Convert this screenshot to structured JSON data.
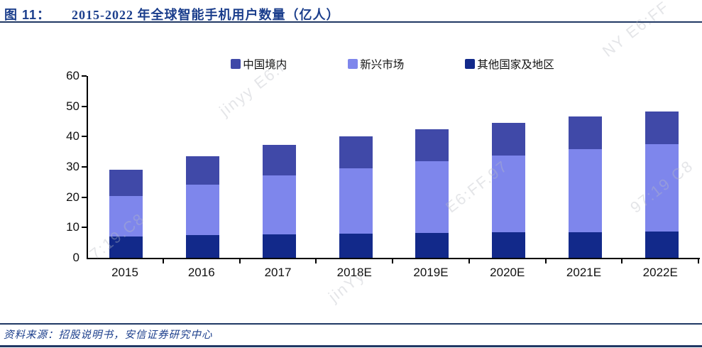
{
  "header": {
    "figure_label": "图 11：",
    "title": "2015-2022 年全球智能手机用户数量（亿人）"
  },
  "chart_data": {
    "type": "bar",
    "stacked": true,
    "title": "2015-2022 年全球智能手机用户数量（亿人）",
    "unit": "亿人",
    "categories": [
      "2015",
      "2016",
      "2017",
      "2018E",
      "2019E",
      "2020E",
      "2021E",
      "2022E"
    ],
    "series": [
      {
        "name": "其他国家及地区",
        "color": "#12298A",
        "values": [
          7.0,
          7.4,
          7.7,
          8.0,
          8.2,
          8.4,
          8.5,
          8.6
        ]
      },
      {
        "name": "新兴市场",
        "color": "#7E86EC",
        "values": [
          13.3,
          16.7,
          19.5,
          21.5,
          23.7,
          25.4,
          27.3,
          29.0
        ]
      },
      {
        "name": "中国境内",
        "color": "#4049A8",
        "values": [
          8.7,
          9.4,
          10.1,
          10.5,
          10.5,
          10.8,
          10.8,
          10.8
        ]
      }
    ],
    "stack_order": "bottom-to-top",
    "totals": [
      29.0,
      33.5,
      37.3,
      40.0,
      42.4,
      44.6,
      46.6,
      48.4
    ],
    "legend": [
      "中国境内",
      "新兴市场",
      "其他国家及地区"
    ],
    "legend_position": "top",
    "ylim": [
      0,
      60
    ],
    "yticks": [
      0,
      10,
      20,
      30,
      40,
      50,
      60
    ],
    "grid": false
  },
  "footer": {
    "source": "资料来源：招股说明书，安信证券研究中心"
  },
  "colors": {
    "title": "#1B3E8C",
    "rule": "#203864",
    "axis": "#000000"
  },
  "watermarks": [
    "jinyy E6:F",
    "NY E6:FF",
    "97:19 C8",
    "E6:FF.97",
    "7:19.C8",
    "jinYy"
  ]
}
